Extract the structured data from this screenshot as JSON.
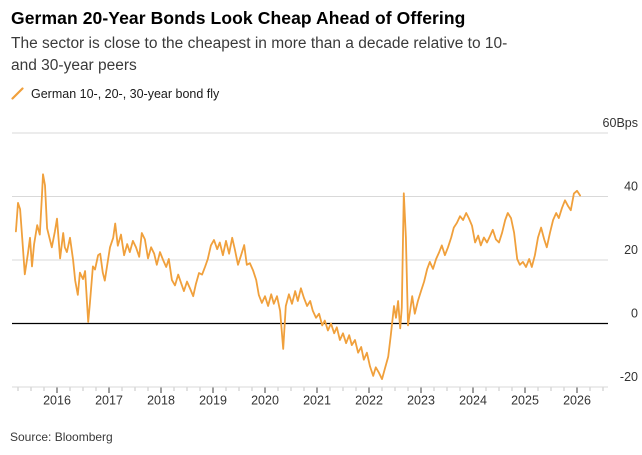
{
  "header": {
    "title": "German 20-Year Bonds Look Cheap Ahead of Offering",
    "subtitle": "The sector is close to the cheapest in more than a decade relative to 10- and 30-year peers",
    "subtitle_line1": "The sector is close to the cheapest in more than a decade relative to 10-",
    "subtitle_line2": "and 30-year peers"
  },
  "legend": {
    "items": [
      {
        "label": "German 10-, 20-, 30-year bond fly",
        "icon": "slash-icon",
        "color": "#F0A03C"
      }
    ]
  },
  "source": "Source: Bloomberg",
  "colors": {
    "background": "#ffffff",
    "line": "#F0A03C",
    "gridline": "#d9d9d9",
    "zero_line": "#000000",
    "axis_label": "#333333",
    "major_tick": "#3c3c3c",
    "minor_tick": "#c4c4c4",
    "title": "#000000",
    "subtitle": "#3a3a3a"
  },
  "chart_data": {
    "type": "line",
    "title": "German 20-Year Bonds Look Cheap Ahead of Offering",
    "subtitle": "The sector is close to the cheapest in more than a decade relative to 10- and 30-year peers",
    "unit": "Bps",
    "xlabel": "",
    "ylabel": "Bps",
    "xlim": [
      2015.1,
      2026.6
    ],
    "ylim": [
      -20,
      60
    ],
    "grid": "horizontal",
    "zero_line": true,
    "legend_position": "top-left",
    "y_ticks": [
      {
        "value": 60,
        "label": "60Bps"
      },
      {
        "value": 40,
        "label": "40"
      },
      {
        "value": 20,
        "label": "20"
      },
      {
        "value": 0,
        "label": "0"
      },
      {
        "value": -20,
        "label": "-20"
      }
    ],
    "x_ticks": [
      {
        "value": 2016,
        "label": "2016"
      },
      {
        "value": 2017,
        "label": "2017"
      },
      {
        "value": 2018,
        "label": "2018"
      },
      {
        "value": 2019,
        "label": "2019"
      },
      {
        "value": 2020,
        "label": "2020"
      },
      {
        "value": 2021,
        "label": "2021"
      },
      {
        "value": 2022,
        "label": "2022"
      },
      {
        "value": 2023,
        "label": "2023"
      },
      {
        "value": 2024,
        "label": "2024"
      },
      {
        "value": 2025,
        "label": "2025"
      },
      {
        "value": 2026,
        "label": "2026"
      }
    ],
    "series": [
      {
        "name": "German 10-, 20-, 30-year bond fly",
        "color": "#F0A03C",
        "points": [
          [
            2015.21,
            29.0
          ],
          [
            2015.25,
            38.0
          ],
          [
            2015.29,
            36.0
          ],
          [
            2015.33,
            27.0
          ],
          [
            2015.38,
            15.5
          ],
          [
            2015.44,
            22.0
          ],
          [
            2015.48,
            27.0
          ],
          [
            2015.52,
            18.0
          ],
          [
            2015.56,
            25.0
          ],
          [
            2015.62,
            31.0
          ],
          [
            2015.67,
            28.0
          ],
          [
            2015.71,
            40.0
          ],
          [
            2015.73,
            47.0
          ],
          [
            2015.77,
            43.5
          ],
          [
            2015.81,
            30.0
          ],
          [
            2015.87,
            26.0
          ],
          [
            2015.9,
            24.0
          ],
          [
            2015.96,
            29.0
          ],
          [
            2016.0,
            33.0
          ],
          [
            2016.06,
            20.5
          ],
          [
            2016.12,
            28.5
          ],
          [
            2016.15,
            24.0
          ],
          [
            2016.19,
            22.5
          ],
          [
            2016.25,
            27.0
          ],
          [
            2016.31,
            20.0
          ],
          [
            2016.35,
            13.5
          ],
          [
            2016.4,
            9.0
          ],
          [
            2016.44,
            16.0
          ],
          [
            2016.5,
            14.0
          ],
          [
            2016.54,
            16.5
          ],
          [
            2016.6,
            0.5
          ],
          [
            2016.63,
            6.0
          ],
          [
            2016.69,
            18.0
          ],
          [
            2016.73,
            17.0
          ],
          [
            2016.79,
            21.5
          ],
          [
            2016.83,
            22.0
          ],
          [
            2016.88,
            16.0
          ],
          [
            2016.92,
            13.5
          ],
          [
            2016.98,
            20.0
          ],
          [
            2017.02,
            24.0
          ],
          [
            2017.08,
            27.0
          ],
          [
            2017.12,
            31.5
          ],
          [
            2017.17,
            24.5
          ],
          [
            2017.23,
            28.0
          ],
          [
            2017.29,
            21.5
          ],
          [
            2017.35,
            25.0
          ],
          [
            2017.4,
            22.5
          ],
          [
            2017.46,
            26.0
          ],
          [
            2017.52,
            24.0
          ],
          [
            2017.58,
            21.0
          ],
          [
            2017.63,
            28.5
          ],
          [
            2017.69,
            26.5
          ],
          [
            2017.75,
            20.5
          ],
          [
            2017.81,
            24.0
          ],
          [
            2017.87,
            22.0
          ],
          [
            2017.92,
            18.5
          ],
          [
            2017.98,
            22.5
          ],
          [
            2018.04,
            20.0
          ],
          [
            2018.1,
            17.8
          ],
          [
            2018.15,
            20.3
          ],
          [
            2018.21,
            13.7
          ],
          [
            2018.27,
            12.0
          ],
          [
            2018.33,
            15.4
          ],
          [
            2018.38,
            13.0
          ],
          [
            2018.44,
            10.2
          ],
          [
            2018.5,
            13.2
          ],
          [
            2018.56,
            11.0
          ],
          [
            2018.62,
            8.6
          ],
          [
            2018.67,
            12.3
          ],
          [
            2018.73,
            15.9
          ],
          [
            2018.79,
            15.4
          ],
          [
            2018.85,
            18.0
          ],
          [
            2018.9,
            20.3
          ],
          [
            2018.96,
            24.6
          ],
          [
            2019.02,
            26.3
          ],
          [
            2019.08,
            23.4
          ],
          [
            2019.13,
            25.5
          ],
          [
            2019.19,
            21.5
          ],
          [
            2019.25,
            26.0
          ],
          [
            2019.31,
            22.0
          ],
          [
            2019.37,
            27.0
          ],
          [
            2019.42,
            23.4
          ],
          [
            2019.48,
            18.5
          ],
          [
            2019.54,
            21.5
          ],
          [
            2019.6,
            24.7
          ],
          [
            2019.65,
            18.5
          ],
          [
            2019.71,
            19.0
          ],
          [
            2019.77,
            16.8
          ],
          [
            2019.83,
            13.7
          ],
          [
            2019.88,
            9.0
          ],
          [
            2019.94,
            6.5
          ],
          [
            2020.0,
            8.6
          ],
          [
            2020.06,
            5.5
          ],
          [
            2020.12,
            9.2
          ],
          [
            2020.17,
            6.2
          ],
          [
            2020.23,
            8.6
          ],
          [
            2020.29,
            4.0
          ],
          [
            2020.35,
            -8.0
          ],
          [
            2020.4,
            5.5
          ],
          [
            2020.46,
            9.2
          ],
          [
            2020.52,
            6.2
          ],
          [
            2020.58,
            10.2
          ],
          [
            2020.63,
            7.1
          ],
          [
            2020.69,
            11.1
          ],
          [
            2020.75,
            8.0
          ],
          [
            2020.81,
            5.5
          ],
          [
            2020.87,
            7.1
          ],
          [
            2020.92,
            4.0
          ],
          [
            2020.98,
            1.8
          ],
          [
            2021.04,
            3.1
          ],
          [
            2021.1,
            -0.6
          ],
          [
            2021.15,
            0.9
          ],
          [
            2021.21,
            -2.2
          ],
          [
            2021.27,
            0.0
          ],
          [
            2021.33,
            -3.1
          ],
          [
            2021.38,
            -1.2
          ],
          [
            2021.44,
            -5.2
          ],
          [
            2021.5,
            -3.1
          ],
          [
            2021.56,
            -6.2
          ],
          [
            2021.62,
            -3.7
          ],
          [
            2021.67,
            -6.8
          ],
          [
            2021.73,
            -5.2
          ],
          [
            2021.79,
            -9.2
          ],
          [
            2021.85,
            -7.4
          ],
          [
            2021.9,
            -11.4
          ],
          [
            2021.96,
            -9.2
          ],
          [
            2022.02,
            -13.5
          ],
          [
            2022.08,
            -16.5
          ],
          [
            2022.13,
            -13.8
          ],
          [
            2022.19,
            -15.5
          ],
          [
            2022.25,
            -17.5
          ],
          [
            2022.31,
            -14.0
          ],
          [
            2022.37,
            -10.5
          ],
          [
            2022.42,
            -3.7
          ],
          [
            2022.48,
            5.5
          ],
          [
            2022.52,
            1.8
          ],
          [
            2022.56,
            7.1
          ],
          [
            2022.6,
            -1.5
          ],
          [
            2022.63,
            5.0
          ],
          [
            2022.67,
            41.0
          ],
          [
            2022.71,
            27.0
          ],
          [
            2022.75,
            -0.6
          ],
          [
            2022.79,
            4.0
          ],
          [
            2022.83,
            8.6
          ],
          [
            2022.88,
            3.1
          ],
          [
            2022.94,
            7.1
          ],
          [
            2023.0,
            10.2
          ],
          [
            2023.06,
            13.2
          ],
          [
            2023.12,
            17.2
          ],
          [
            2023.17,
            19.4
          ],
          [
            2023.23,
            17.2
          ],
          [
            2023.29,
            20.3
          ],
          [
            2023.35,
            22.5
          ],
          [
            2023.4,
            24.6
          ],
          [
            2023.46,
            21.5
          ],
          [
            2023.52,
            24.0
          ],
          [
            2023.58,
            27.1
          ],
          [
            2023.63,
            30.2
          ],
          [
            2023.69,
            31.7
          ],
          [
            2023.75,
            33.8
          ],
          [
            2023.81,
            32.6
          ],
          [
            2023.87,
            34.8
          ],
          [
            2023.92,
            33.2
          ],
          [
            2023.98,
            30.8
          ],
          [
            2024.04,
            25.5
          ],
          [
            2024.1,
            27.7
          ],
          [
            2024.15,
            24.6
          ],
          [
            2024.21,
            27.1
          ],
          [
            2024.27,
            25.5
          ],
          [
            2024.33,
            27.7
          ],
          [
            2024.38,
            29.5
          ],
          [
            2024.44,
            26.5
          ],
          [
            2024.5,
            25.5
          ],
          [
            2024.56,
            28.6
          ],
          [
            2024.62,
            32.6
          ],
          [
            2024.67,
            34.8
          ],
          [
            2024.73,
            33.2
          ],
          [
            2024.79,
            28.6
          ],
          [
            2024.85,
            20.3
          ],
          [
            2024.9,
            18.5
          ],
          [
            2024.96,
            19.4
          ],
          [
            2025.02,
            17.8
          ],
          [
            2025.08,
            20.3
          ],
          [
            2025.13,
            17.8
          ],
          [
            2025.19,
            21.5
          ],
          [
            2025.25,
            27.1
          ],
          [
            2025.31,
            30.2
          ],
          [
            2025.37,
            26.5
          ],
          [
            2025.42,
            24.0
          ],
          [
            2025.48,
            28.6
          ],
          [
            2025.54,
            32.6
          ],
          [
            2025.6,
            34.8
          ],
          [
            2025.65,
            33.2
          ],
          [
            2025.71,
            36.3
          ],
          [
            2025.77,
            38.8
          ],
          [
            2025.83,
            36.9
          ],
          [
            2025.88,
            35.7
          ],
          [
            2025.94,
            40.9
          ],
          [
            2026.0,
            41.8
          ],
          [
            2026.06,
            40.3
          ]
        ]
      }
    ]
  }
}
